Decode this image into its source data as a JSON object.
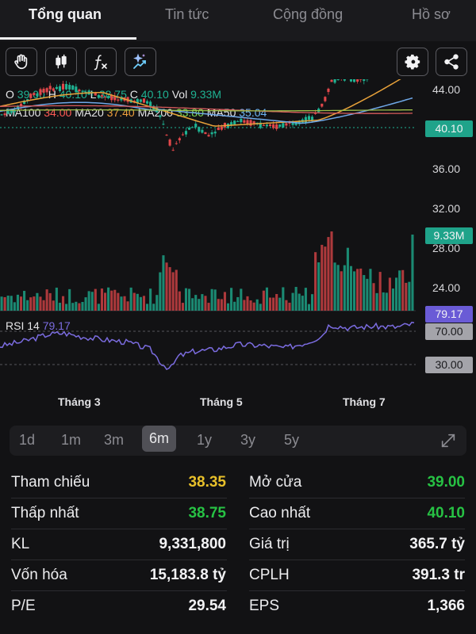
{
  "tabs": [
    "Tổng quan",
    "Tin tức",
    "Cộng đồng",
    "Hồ sơ"
  ],
  "toolbar": {
    "left_icons": [
      "hand-icon",
      "candlestick-icon",
      "function-icon",
      "sparkle-icon"
    ],
    "right_icons": [
      "gear-icon",
      "share-icon"
    ]
  },
  "ohlc": {
    "open_label": "O",
    "open": "39.00",
    "high_label": "H",
    "high": "40.10",
    "low_label": "L",
    "low": "38.75",
    "close_label": "C",
    "close": "40.10",
    "vol_label": "Vol",
    "vol": "9.33M"
  },
  "moving_averages": [
    {
      "label": "MA100",
      "value": "34.00",
      "color": "#ff5a55"
    },
    {
      "label": "MA20",
      "value": "37.40",
      "color": "#f0a03c"
    },
    {
      "label": "MA200",
      "value": "33.80",
      "color": "#7ed957"
    },
    {
      "label": "MA50",
      "value": "35.04",
      "color": "#6cb3f2"
    }
  ],
  "y_axis_labels": [
    "44.00",
    "36.00",
    "32.00",
    "28.00",
    "24.00"
  ],
  "price_tag": "40.10",
  "volume_tag": "9.33M",
  "rsi": {
    "label": "RSI 14",
    "value": "79.17",
    "levels": [
      "70.00",
      "30.00"
    ]
  },
  "x_axis_labels": [
    "Tháng 3",
    "Tháng 5",
    "Tháng 7"
  ],
  "ranges": [
    "1d",
    "1m",
    "3m",
    "6m",
    "1y",
    "3y",
    "5y"
  ],
  "selected_range": "6m",
  "stats": [
    {
      "left_label": "Tham chiếu",
      "left_value": "38.35",
      "left_color": "#e8c02a",
      "right_label": "Mở cửa",
      "right_value": "39.00",
      "right_color": "#27c244"
    },
    {
      "left_label": "Thấp nhất",
      "left_value": "38.75",
      "left_color": "#27c244",
      "right_label": "Cao nhất",
      "right_value": "40.10",
      "right_color": "#27c244"
    },
    {
      "left_label": "KL",
      "left_value": "9,331,800",
      "left_color": "#f2f2f4",
      "right_label": "Giá trị",
      "right_value": "365.7 tỷ",
      "right_color": "#f2f2f4"
    },
    {
      "left_label": "Vốn hóa",
      "left_value": "15,183.8 tỷ",
      "left_color": "#f2f2f4",
      "right_label": "CPLH",
      "right_value": "391.3 tr",
      "right_color": "#f2f2f4"
    },
    {
      "left_label": "P/E",
      "left_value": "29.54",
      "left_color": "#f2f2f4",
      "right_label": "EPS",
      "right_value": "1,366",
      "right_color": "#f2f2f4"
    }
  ],
  "colors": {
    "up": "#1fb393",
    "down": "#e2474a",
    "rsi": "#7b6ce0"
  }
}
